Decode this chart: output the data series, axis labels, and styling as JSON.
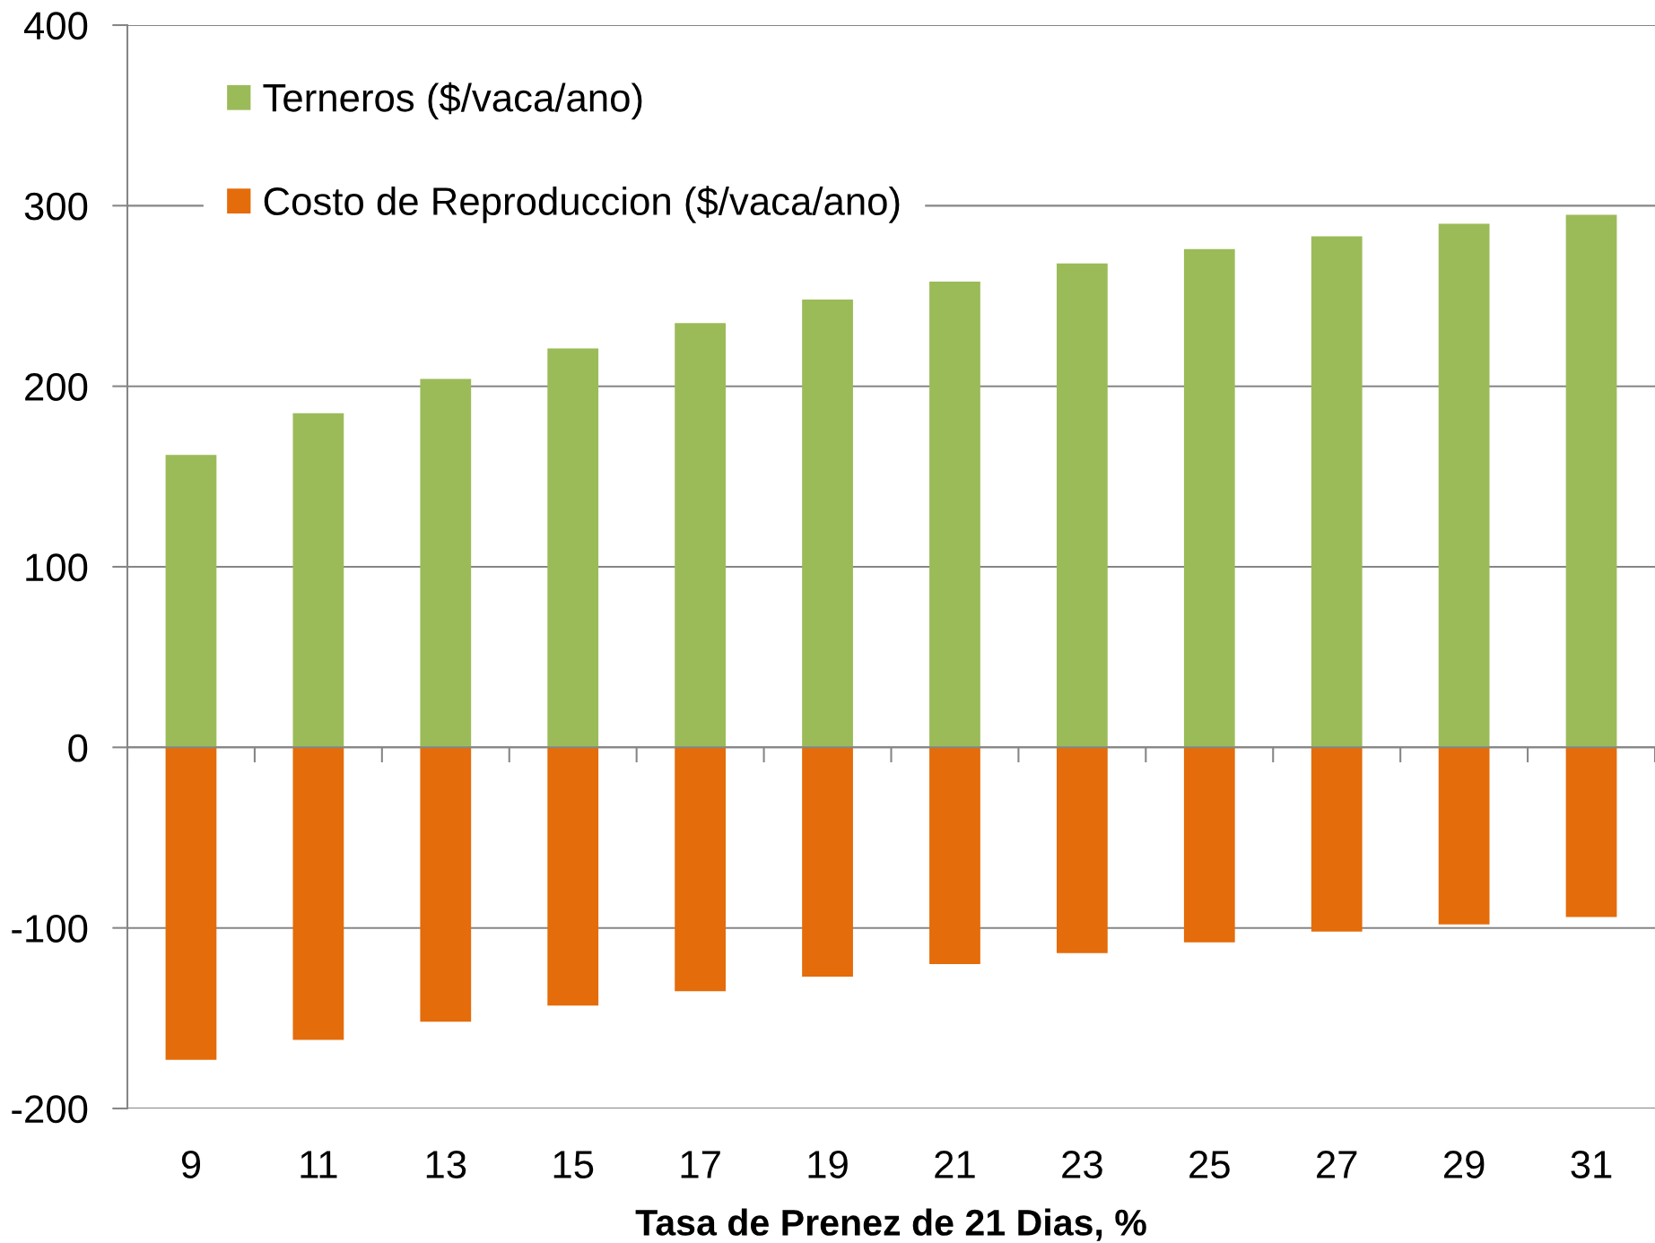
{
  "chart_data": {
    "type": "bar",
    "stacked": true,
    "categories": [
      "9",
      "11",
      "13",
      "15",
      "17",
      "19",
      "21",
      "23",
      "25",
      "27",
      "29",
      "31"
    ],
    "series": [
      {
        "name": "Terneros ($/vaca/ano)",
        "color": "#9bbb59",
        "values": [
          162,
          185,
          204,
          221,
          235,
          248,
          258,
          268,
          276,
          283,
          290,
          295
        ]
      },
      {
        "name": "Costo de Reproduccion ($/vaca/ano)",
        "color": "#e46c0a",
        "values": [
          -173,
          -162,
          -152,
          -143,
          -135,
          -127,
          -120,
          -114,
          -108,
          -102,
          -98,
          -94
        ]
      }
    ],
    "xlabel": "Tasa de Prenez de 21 Dias, %",
    "ylim": [
      -200,
      400
    ],
    "yticks": [
      -200,
      -100,
      0,
      100,
      200,
      300,
      400
    ],
    "grid": "y",
    "legend": "top left"
  }
}
